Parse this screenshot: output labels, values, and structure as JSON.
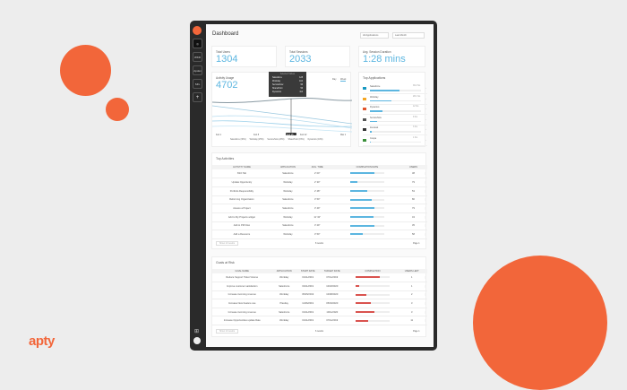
{
  "brand": {
    "logo": "apty",
    "accent": "#f2663a",
    "chart_blue": "#5cb6e0",
    "risk_red": "#d9534f"
  },
  "sidebar": {
    "items": [
      {
        "label": "",
        "icon": "compass-icon"
      },
      {
        "label": "WKD"
      },
      {
        "label": "Apdev"
      },
      {
        "label": "SFL"
      },
      {
        "label": "+"
      }
    ]
  },
  "header": {
    "title": "Dashboard",
    "app_filter": "All Applications",
    "period_filter": "Last Month"
  },
  "stats": [
    {
      "label": "Total Users",
      "value": "1304"
    },
    {
      "label": "Total Sessions",
      "value": "2033"
    },
    {
      "label": "Avg. Session Duration",
      "value": "1:28 mins"
    }
  ],
  "activity": {
    "label": "Activity Usage",
    "value": "4702",
    "toggle": [
      "Day",
      "Week"
    ],
    "x_labels": [
      "Feb 1",
      "Feb 8",
      "Feb 15",
      "Feb 22",
      "Mar 1"
    ],
    "tooltip": {
      "title": "Selected Values",
      "rows": [
        {
          "k": "Salesforce",
          "v": "128"
        },
        {
          "k": "Workday",
          "v": "104"
        },
        {
          "k": "ServiceNow",
          "v": "96"
        },
        {
          "k": "SharePoint",
          "v": "56"
        },
        {
          "k": "Dynamics",
          "v": "114"
        }
      ]
    },
    "legend": [
      "Salesforce (30%)",
      "Workday (25%)",
      "ServiceNow (20%)",
      "SharePoint (15%)",
      "Dynamics (10%)"
    ]
  },
  "top_apps": {
    "title": "Top Applications",
    "items": [
      {
        "name": "Salesforce",
        "value": "38.2 hrs",
        "pct": 0.58,
        "icon": "cloud-icon"
      },
      {
        "name": "Workday",
        "value": "28.1 hrs",
        "pct": 0.42,
        "icon": "workday-icon"
      },
      {
        "name": "Dynamics",
        "value": "12 hrs",
        "pct": 0.24,
        "icon": "dynamics-icon"
      },
      {
        "name": "ServiceNow",
        "value": "9 hrs",
        "pct": 0.14,
        "icon": "servicenow-icon"
      },
      {
        "name": "Zendesk",
        "value": "3 hrs",
        "pct": 0.04,
        "icon": "zendesk-icon"
      },
      {
        "name": "Coupa",
        "value": "1 hrs",
        "pct": 0.02,
        "icon": "coupa-icon"
      }
    ]
  },
  "top_activities": {
    "title": "Top Activities",
    "columns": [
      "Activity Name",
      "Application",
      "Avg. Time",
      "Completion Rate",
      "Users"
    ],
    "rows": [
      [
        "SSO Tab",
        "Salesforce",
        "2' 00\"",
        0.72,
        "38"
      ],
      [
        "Update Opportunity",
        "Workday",
        "2' 30\"",
        0.2,
        "79"
      ],
      [
        "Portfolio Responsibility",
        "Workday",
        "2' 48\"",
        0.5,
        "53"
      ],
      [
        "Reforming Organization",
        "Salesforce",
        "3' 50\"",
        0.63,
        "80"
      ],
      [
        "Assess a Project",
        "Salesforce",
        "3' 49\"",
        0.72,
        "79"
      ],
      [
        "Add to My Projects widget",
        "Workday",
        "11' 32\"",
        0.68,
        "43"
      ],
      [
        "Add to PM Flow",
        "Salesforce",
        "3' 29\"",
        0.71,
        "35"
      ],
      [
        "Add a Resource",
        "Workday",
        "3' 50\"",
        0.38,
        "58"
      ]
    ],
    "show": "Show 10 results",
    "page_info": "8 results",
    "page": "Page 1"
  },
  "goals": {
    "title": "Goals at Risk",
    "columns": [
      "Goal Name",
      "Application",
      "Start Date",
      "Target Date",
      "Completion",
      "Users Left"
    ],
    "rows": [
      [
        "Reduce Support Ticket Volume",
        "Workday",
        "01/11/2019",
        "07/11/2019",
        0.72,
        "1"
      ],
      [
        "Improve customer satisfaction",
        "Salesforce",
        "02/11/2019",
        "10/18/2020",
        0.1,
        "1"
      ],
      [
        "Increase incoming revenue",
        "Workday",
        "05/25/2019",
        "10/08/2020",
        0.32,
        "2"
      ],
      [
        "Increase New Feature use",
        "Planday",
        "11/06/2019",
        "05/03/2020",
        0.45,
        "3"
      ],
      [
        "Increase incoming revenue",
        "Salesforce",
        "01/11/2019",
        "10/11/2020",
        0.55,
        "3"
      ],
      [
        "Increase Opportunities update Rate",
        "Workday",
        "01/11/2019",
        "07/11/2019",
        0.36,
        "11"
      ]
    ],
    "show": "Show 10 results",
    "page_info": "6 results",
    "page": "Page 1"
  }
}
